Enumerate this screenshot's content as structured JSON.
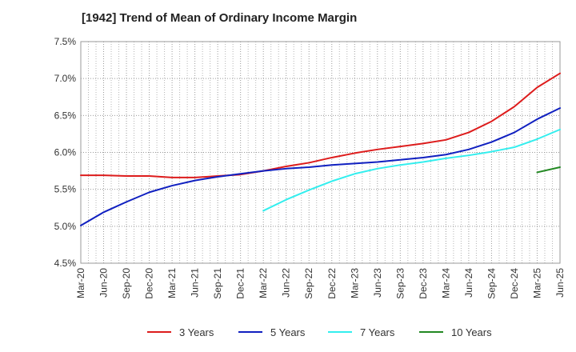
{
  "chart_data": {
    "type": "line",
    "title": "[1942]  Trend of Mean of Ordinary Income Margin",
    "xlabel": "",
    "ylabel": "",
    "x_ticks": [
      "Mar-20",
      "Jun-20",
      "Sep-20",
      "Dec-20",
      "Mar-21",
      "Jun-21",
      "Sep-21",
      "Dec-21",
      "Mar-22",
      "Jun-22",
      "Sep-22",
      "Dec-22",
      "Mar-23",
      "Jun-23",
      "Sep-23",
      "Dec-23",
      "Mar-24",
      "Jun-24",
      "Sep-24",
      "Dec-24",
      "Mar-25",
      "Jun-25"
    ],
    "y_ticks": [
      "4.5%",
      "5.0%",
      "5.5%",
      "6.0%",
      "6.5%",
      "7.0%",
      "7.5%"
    ],
    "ylim": [
      4.5,
      7.5
    ],
    "grid": true,
    "legend_position": "bottom",
    "series": [
      {
        "name": "3 Years",
        "color": "#dd1c1c",
        "start_index": 0,
        "values": [
          5.69,
          5.69,
          5.68,
          5.68,
          5.66,
          5.66,
          5.68,
          5.7,
          5.75,
          5.81,
          5.86,
          5.93,
          5.99,
          6.04,
          6.08,
          6.12,
          6.17,
          6.27,
          6.42,
          6.62,
          6.88,
          7.07
        ]
      },
      {
        "name": "5 Years",
        "color": "#1020c0",
        "start_index": 0,
        "values": [
          5.01,
          5.19,
          5.33,
          5.46,
          5.55,
          5.62,
          5.67,
          5.71,
          5.75,
          5.78,
          5.8,
          5.83,
          5.85,
          5.87,
          5.9,
          5.93,
          5.97,
          6.04,
          6.14,
          6.27,
          6.45,
          6.6
        ]
      },
      {
        "name": "7 Years",
        "color": "#33eeee",
        "start_index": 8,
        "values": [
          5.21,
          5.36,
          5.49,
          5.61,
          5.71,
          5.78,
          5.83,
          5.87,
          5.92,
          5.96,
          6.01,
          6.07,
          6.18,
          6.31
        ]
      },
      {
        "name": "10 Years",
        "color": "#228822",
        "start_index": 20,
        "values": [
          5.73,
          5.8
        ]
      }
    ]
  }
}
